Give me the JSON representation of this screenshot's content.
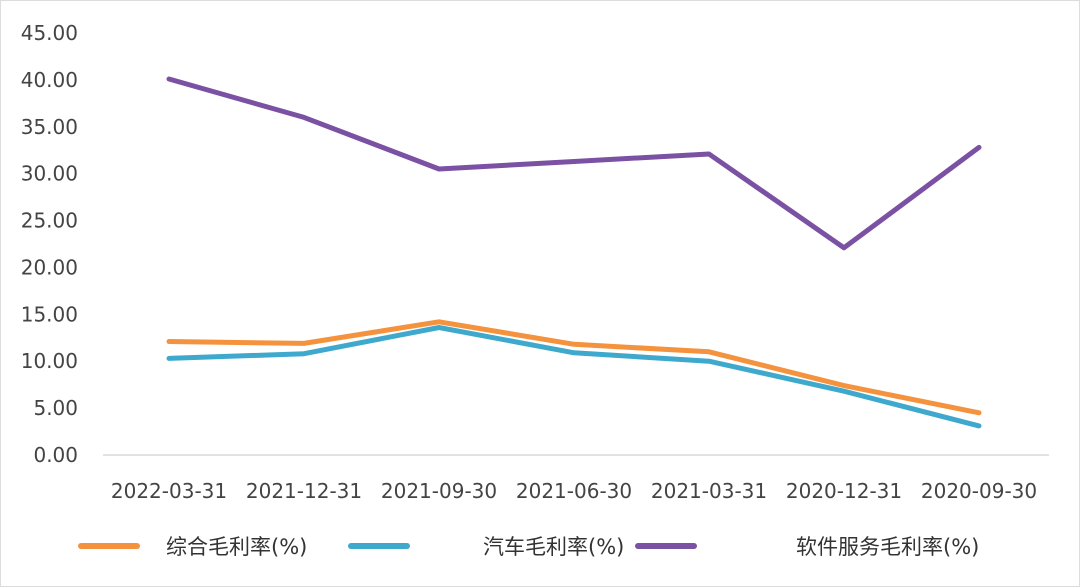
{
  "chart_data": {
    "type": "line",
    "title": "",
    "xlabel": "",
    "ylabel": "",
    "categories": [
      "2022-03-31",
      "2021-12-31",
      "2021-09-30",
      "2021-06-30",
      "2021-03-31",
      "2020-12-31",
      "2020-09-30"
    ],
    "ylim": [
      0,
      45
    ],
    "ytick_labels": [
      "0.00",
      "5.00",
      "10.00",
      "15.00",
      "20.00",
      "25.00",
      "30.00",
      "35.00",
      "40.00",
      "45.00"
    ],
    "grid": false,
    "legend_position": "bottom",
    "series": [
      {
        "name": "综合毛利率(%)",
        "color": "#f5923e",
        "values": [
          12.1,
          11.9,
          14.2,
          11.8,
          11.0,
          7.4,
          4.5
        ]
      },
      {
        "name": "汽车毛利率(%)",
        "color": "#3ea9cc",
        "values": [
          10.3,
          10.8,
          13.6,
          10.9,
          10.0,
          6.8,
          3.1
        ]
      },
      {
        "name": "软件服务毛利率(%)",
        "color": "#7b51a3",
        "values": [
          40.1,
          36.0,
          30.5,
          31.3,
          32.1,
          22.1,
          32.8
        ]
      }
    ]
  }
}
